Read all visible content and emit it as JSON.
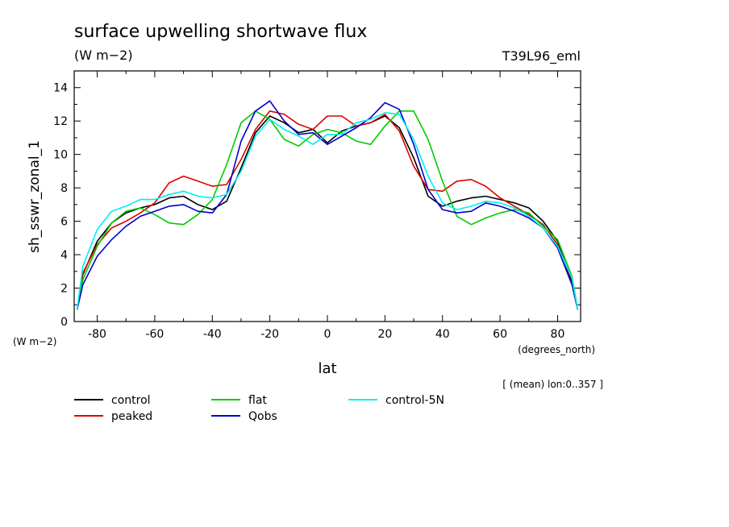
{
  "chart_data": {
    "type": "line",
    "title": "surface upwelling shortwave flux",
    "units_label": "(W m−2)",
    "experiment": "T39L96_eml",
    "ylabel": "sh_sswr_zonal_1",
    "yunits": "(W m−2)",
    "xlabel": "lat",
    "xunits": "(degrees_north)",
    "note": "[ (mean) lon:0..357 ]",
    "xlim": [
      -88,
      88
    ],
    "ylim": [
      0,
      15
    ],
    "xticks": [
      -80,
      -60,
      -40,
      -20,
      0,
      20,
      40,
      60,
      80
    ],
    "yticks": [
      0,
      2,
      4,
      6,
      8,
      10,
      12,
      14
    ],
    "x": [
      -87,
      -85,
      -80,
      -75,
      -70,
      -65,
      -60,
      -55,
      -50,
      -45,
      -40,
      -35,
      -30,
      -25,
      -20,
      -15,
      -10,
      -5,
      0,
      5,
      10,
      15,
      20,
      25,
      30,
      35,
      40,
      45,
      50,
      55,
      60,
      65,
      70,
      75,
      80,
      85,
      87
    ],
    "series": [
      {
        "name": "control",
        "color": "#000000",
        "values": [
          0.7,
          2.8,
          4.8,
          5.9,
          6.5,
          6.8,
          7.0,
          7.4,
          7.5,
          7.0,
          6.7,
          7.2,
          9.2,
          11.3,
          12.3,
          11.9,
          11.3,
          11.5,
          10.7,
          11.4,
          11.7,
          11.9,
          12.3,
          11.6,
          9.8,
          7.5,
          6.9,
          7.2,
          7.4,
          7.5,
          7.3,
          7.1,
          6.8,
          6.0,
          4.8,
          2.3,
          0.7
        ]
      },
      {
        "name": "peaked",
        "color": "#dd0000",
        "values": [
          0.7,
          2.9,
          4.6,
          5.6,
          6.0,
          6.5,
          7.1,
          8.3,
          8.7,
          8.4,
          8.1,
          8.2,
          9.7,
          11.5,
          12.6,
          12.4,
          11.8,
          11.5,
          12.3,
          12.3,
          11.7,
          11.9,
          12.4,
          11.4,
          9.3,
          7.9,
          7.8,
          8.4,
          8.5,
          8.1,
          7.4,
          6.9,
          6.4,
          5.8,
          4.6,
          2.5,
          0.7
        ]
      },
      {
        "name": "flat",
        "color": "#00cc00",
        "values": [
          0.7,
          2.5,
          4.5,
          5.9,
          6.6,
          6.8,
          6.4,
          5.9,
          5.8,
          6.4,
          7.3,
          9.4,
          11.9,
          12.6,
          12.1,
          10.9,
          10.5,
          11.2,
          11.5,
          11.3,
          10.8,
          10.6,
          11.7,
          12.6,
          12.6,
          10.9,
          8.4,
          6.3,
          5.8,
          6.2,
          6.5,
          6.7,
          6.5,
          5.7,
          4.9,
          2.7,
          0.7
        ]
      },
      {
        "name": "Qobs",
        "color": "#0000cc",
        "values": [
          0.7,
          2.2,
          3.9,
          4.9,
          5.7,
          6.3,
          6.6,
          6.9,
          7.0,
          6.6,
          6.5,
          7.6,
          10.8,
          12.6,
          13.2,
          12.0,
          11.2,
          11.3,
          10.6,
          11.1,
          11.6,
          12.2,
          13.1,
          12.7,
          10.6,
          7.9,
          6.7,
          6.5,
          6.6,
          7.1,
          6.9,
          6.6,
          6.2,
          5.6,
          4.4,
          2.2,
          0.7
        ]
      },
      {
        "name": "control-5N",
        "color": "#00eeee",
        "values": [
          0.7,
          3.3,
          5.5,
          6.6,
          6.9,
          7.3,
          7.3,
          7.6,
          7.8,
          7.5,
          7.4,
          7.6,
          9.0,
          11.1,
          12.1,
          11.5,
          11.1,
          10.6,
          11.2,
          11.2,
          11.9,
          12.1,
          12.5,
          12.4,
          10.9,
          8.7,
          7.1,
          6.7,
          6.9,
          7.2,
          7.1,
          6.8,
          6.3,
          5.6,
          4.5,
          2.6,
          0.7
        ]
      }
    ]
  }
}
